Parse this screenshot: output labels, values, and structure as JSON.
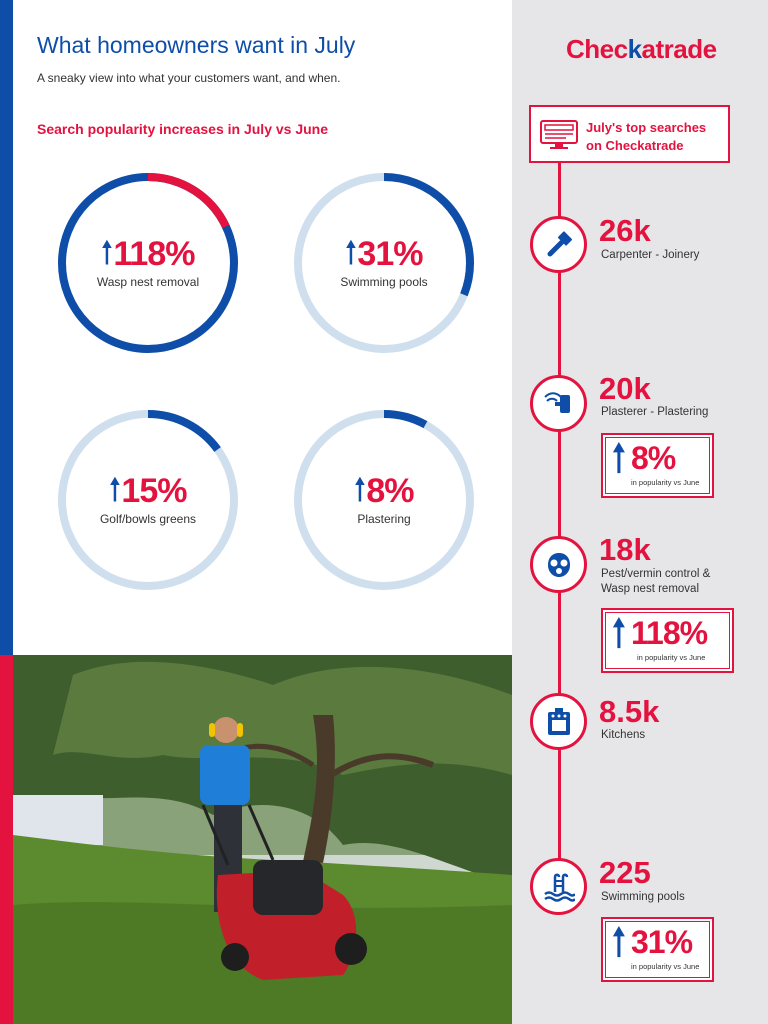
{
  "header": {
    "title": "What homeowners want in July",
    "subtitle": "A sneaky view into what your customers want, and when."
  },
  "section_title": "Search popularity increases in July vs June",
  "gauges": [
    {
      "value": "118%",
      "label": "Wasp nest removal",
      "fraction": 1.18
    },
    {
      "value": "31%",
      "label": "Swimming pools",
      "fraction": 0.31
    },
    {
      "value": "15%",
      "label": "Golf/bowls greens",
      "fraction": 0.15
    },
    {
      "value": "8%",
      "label": "Plastering",
      "fraction": 0.08
    }
  ],
  "logo": {
    "part1": "Chec",
    "part2": "k",
    "part3": "atrade"
  },
  "top_searches": {
    "title_line1": "July's top searches",
    "title_line2": "on Checkatrade",
    "items": [
      {
        "count": "26k",
        "label_line1": "Carpenter - Joinery",
        "label_line2": "",
        "icon": "hammer-icon"
      },
      {
        "count": "20k",
        "label_line1": "Plasterer - Plastering",
        "label_line2": "",
        "icon": "plastering-trowel-icon",
        "increase": "8%"
      },
      {
        "count": "18k",
        "label_line1": "Pest/vermin control &",
        "label_line2": "Wasp nest removal",
        "icon": "gas-mask-icon",
        "increase": "118%"
      },
      {
        "count": "8.5k",
        "label_line1": "Kitchens",
        "label_line2": "",
        "icon": "oven-icon"
      },
      {
        "count": "225",
        "label_line1": "Swimming pools",
        "label_line2": "",
        "icon": "pool-ladder-icon",
        "increase": "31%"
      }
    ],
    "increase_caption": "in popularity vs June"
  },
  "colors": {
    "brand_blue": "#0e4ea8",
    "brand_red": "#e4123f",
    "track": "#cfdfee",
    "panel": "#e6e6e8"
  }
}
